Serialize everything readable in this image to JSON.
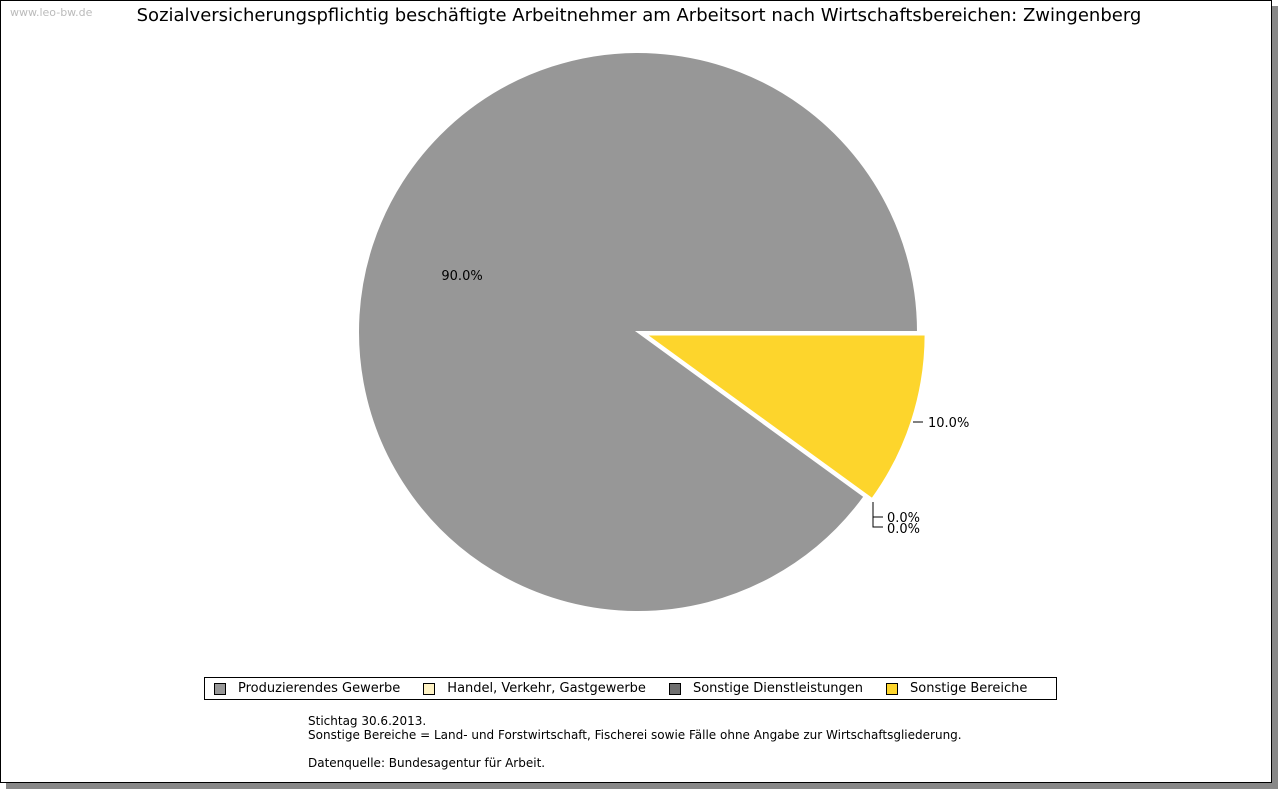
{
  "watermark": "www.leo-bw.de",
  "chart_data": {
    "type": "pie",
    "title": "Sozialversicherungspflichtig beschäftigte Arbeitnehmer am Arbeitsort nach Wirtschaftsbereichen: Zwingenberg",
    "slices": [
      {
        "name": "Produzierendes Gewerbe",
        "value": 90.0,
        "label": "90.0%",
        "color": "#979797"
      },
      {
        "name": "Handel, Verkehr, Gastgewerbe",
        "value": 0.0,
        "label": "0.0%",
        "color": "#FFF3C4"
      },
      {
        "name": "Sonstige Dienstleistungen",
        "value": 0.0,
        "label": "0.0%",
        "color": "#6E6E6E"
      },
      {
        "name": "Sonstige Bereiche",
        "value": 10.0,
        "label": "10.0%",
        "color": "#FDD52C"
      }
    ],
    "legend_position": "bottom"
  },
  "notes": {
    "line1": "Stichtag 30.6.2013.",
    "line2": "Sonstige Bereiche = Land- und Forstwirtschaft, Fischerei sowie Fälle ohne Angabe zur Wirtschaftsgliederung.",
    "line3": "Datenquelle: Bundesagentur für Arbeit."
  }
}
